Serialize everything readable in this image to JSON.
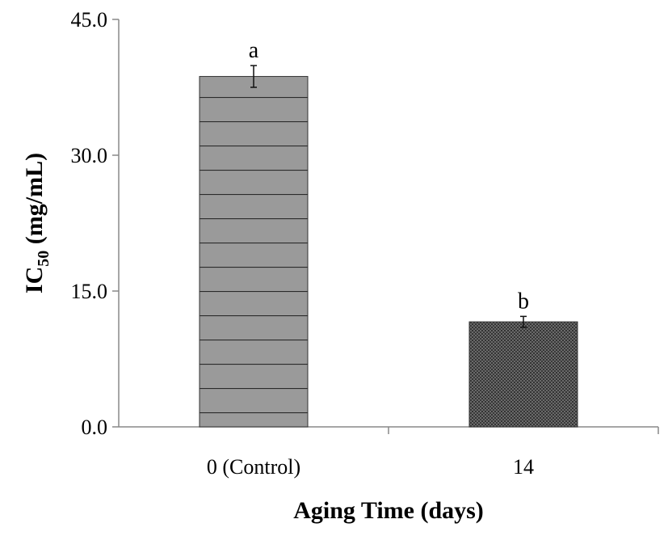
{
  "chart_data": {
    "type": "bar",
    "categories": [
      "0 (Control)",
      "14"
    ],
    "values": [
      38.7,
      11.6
    ],
    "errors": [
      1.2,
      0.6
    ],
    "significance_letters": [
      "a",
      "b"
    ],
    "bar_colors": [
      "#9a9a9a",
      "#555555"
    ],
    "bar_patterns": [
      "horizontal-lines",
      "dense-grid"
    ],
    "xlabel": "Aging Time (days)",
    "ylabel": {
      "main": "IC",
      "sub": "50",
      "unit": " (mg/mL)"
    },
    "yticks": [
      "0.0",
      "15.0",
      "30.0",
      "45.0"
    ],
    "ylim": [
      0,
      45
    ],
    "grid": false,
    "legend": "none"
  }
}
